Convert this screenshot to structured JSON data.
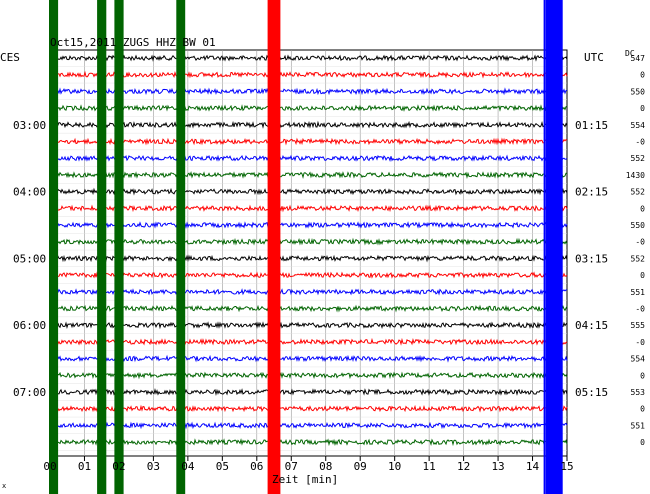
{
  "header": {
    "title": "Oct15,2011   ZUGS HHZ BW 01",
    "left_tz": "CES",
    "right_tz": "UTC",
    "dc_label": "DC"
  },
  "footer": {
    "xlabel": "Zeit [min]",
    "corner_mark": "x"
  },
  "colors": {
    "black": "#000000",
    "red": "#ff0000",
    "blue": "#0000ff",
    "green": "#006400",
    "grid": "#999999"
  },
  "chart_data": {
    "type": "line",
    "title": "Oct15,2011   ZUGS HHZ BW 01",
    "xlabel": "Zeit [min]",
    "xlim": [
      0,
      15
    ],
    "x_ticks": [
      "00",
      "01",
      "02",
      "03",
      "04",
      "05",
      "06",
      "07",
      "08",
      "09",
      "10",
      "11",
      "12",
      "13",
      "14",
      "15"
    ],
    "grid": true,
    "trace_count": 24,
    "trace_colors": [
      "black",
      "red",
      "blue",
      "green"
    ],
    "left_time_labels": [
      {
        "label": "03:00",
        "trace": 4
      },
      {
        "label": "04:00",
        "trace": 8
      },
      {
        "label": "05:00",
        "trace": 12
      },
      {
        "label": "06:00",
        "trace": 16
      },
      {
        "label": "07:00",
        "trace": 20
      }
    ],
    "right_time_labels": [
      {
        "label": "01:15",
        "trace": 4
      },
      {
        "label": "02:15",
        "trace": 8
      },
      {
        "label": "03:15",
        "trace": 12
      },
      {
        "label": "04:15",
        "trace": 16
      },
      {
        "label": "05:15",
        "trace": 20
      }
    ],
    "dc_values": [
      {
        "value": "547",
        "trace": 0
      },
      {
        "value": "0",
        "trace": 1
      },
      {
        "value": "550",
        "trace": 2
      },
      {
        "value": "0",
        "trace": 3
      },
      {
        "value": "554",
        "trace": 4
      },
      {
        "value": "-0",
        "trace": 5
      },
      {
        "value": "552",
        "trace": 6
      },
      {
        "value": "1430",
        "trace": 7
      },
      {
        "value": "552",
        "trace": 8
      },
      {
        "value": "0",
        "trace": 9
      },
      {
        "value": "550",
        "trace": 10
      },
      {
        "value": "-0",
        "trace": 11
      },
      {
        "value": "552",
        "trace": 12
      },
      {
        "value": "0",
        "trace": 13
      },
      {
        "value": "551",
        "trace": 14
      },
      {
        "value": "-0",
        "trace": 15
      },
      {
        "value": "555",
        "trace": 16
      },
      {
        "value": "-0",
        "trace": 17
      },
      {
        "value": "554",
        "trace": 18
      },
      {
        "value": "0",
        "trace": 19
      },
      {
        "value": "553",
        "trace": 20
      },
      {
        "value": "0",
        "trace": 21
      },
      {
        "value": "551",
        "trace": 22
      },
      {
        "value": "0",
        "trace": 23
      }
    ],
    "events": [
      {
        "x_min": 0.1,
        "color": "green",
        "label": ""
      },
      {
        "x_min": 1.5,
        "color": "green",
        "label": ""
      },
      {
        "x_min": 2.0,
        "color": "green",
        "label": ""
      },
      {
        "x_min": 3.8,
        "color": "green",
        "label": ""
      },
      {
        "x_min": 6.5,
        "color": "red",
        "label": ""
      },
      {
        "x_min": 14.6,
        "color": "blue",
        "label": ""
      }
    ]
  }
}
